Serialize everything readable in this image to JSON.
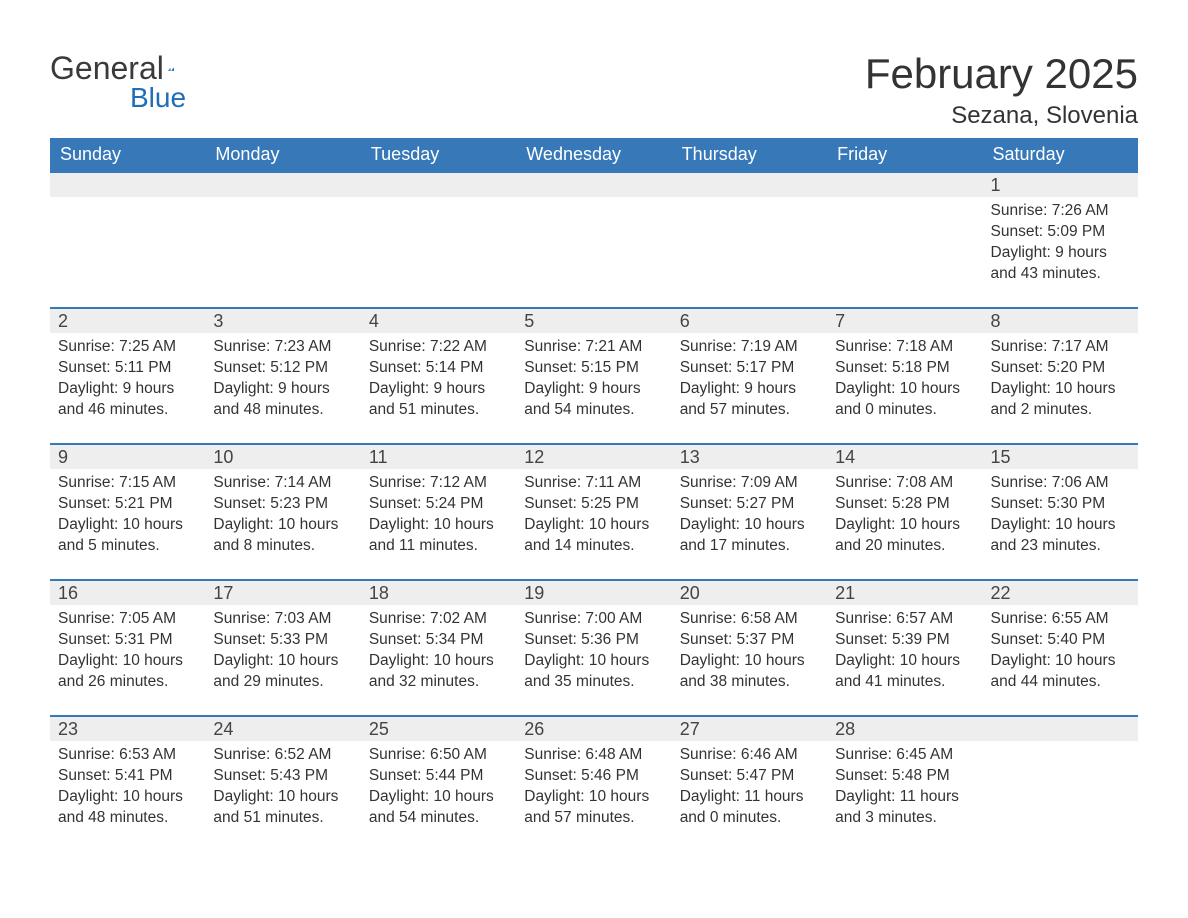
{
  "logo": {
    "text1": "General",
    "text2": "Blue"
  },
  "title": "February 2025",
  "location": "Sezana, Slovenia",
  "colors": {
    "header_bg": "#3678b8",
    "header_text": "#ffffff",
    "day_num_bg": "#eeeeee",
    "week_border": "#3678b8",
    "body_text": "#333333"
  },
  "typography": {
    "title_fontsize": 42,
    "location_fontsize": 24,
    "header_fontsize": 18,
    "daynum_fontsize": 18,
    "detail_fontsize": 15.5
  },
  "day_labels": [
    "Sunday",
    "Monday",
    "Tuesday",
    "Wednesday",
    "Thursday",
    "Friday",
    "Saturday"
  ],
  "weeks": [
    [
      null,
      null,
      null,
      null,
      null,
      null,
      {
        "n": "1",
        "sr": "Sunrise: 7:26 AM",
        "ss": "Sunset: 5:09 PM",
        "dl": "Daylight: 9 hours and 43 minutes."
      }
    ],
    [
      {
        "n": "2",
        "sr": "Sunrise: 7:25 AM",
        "ss": "Sunset: 5:11 PM",
        "dl": "Daylight: 9 hours and 46 minutes."
      },
      {
        "n": "3",
        "sr": "Sunrise: 7:23 AM",
        "ss": "Sunset: 5:12 PM",
        "dl": "Daylight: 9 hours and 48 minutes."
      },
      {
        "n": "4",
        "sr": "Sunrise: 7:22 AM",
        "ss": "Sunset: 5:14 PM",
        "dl": "Daylight: 9 hours and 51 minutes."
      },
      {
        "n": "5",
        "sr": "Sunrise: 7:21 AM",
        "ss": "Sunset: 5:15 PM",
        "dl": "Daylight: 9 hours and 54 minutes."
      },
      {
        "n": "6",
        "sr": "Sunrise: 7:19 AM",
        "ss": "Sunset: 5:17 PM",
        "dl": "Daylight: 9 hours and 57 minutes."
      },
      {
        "n": "7",
        "sr": "Sunrise: 7:18 AM",
        "ss": "Sunset: 5:18 PM",
        "dl": "Daylight: 10 hours and 0 minutes."
      },
      {
        "n": "8",
        "sr": "Sunrise: 7:17 AM",
        "ss": "Sunset: 5:20 PM",
        "dl": "Daylight: 10 hours and 2 minutes."
      }
    ],
    [
      {
        "n": "9",
        "sr": "Sunrise: 7:15 AM",
        "ss": "Sunset: 5:21 PM",
        "dl": "Daylight: 10 hours and 5 minutes."
      },
      {
        "n": "10",
        "sr": "Sunrise: 7:14 AM",
        "ss": "Sunset: 5:23 PM",
        "dl": "Daylight: 10 hours and 8 minutes."
      },
      {
        "n": "11",
        "sr": "Sunrise: 7:12 AM",
        "ss": "Sunset: 5:24 PM",
        "dl": "Daylight: 10 hours and 11 minutes."
      },
      {
        "n": "12",
        "sr": "Sunrise: 7:11 AM",
        "ss": "Sunset: 5:25 PM",
        "dl": "Daylight: 10 hours and 14 minutes."
      },
      {
        "n": "13",
        "sr": "Sunrise: 7:09 AM",
        "ss": "Sunset: 5:27 PM",
        "dl": "Daylight: 10 hours and 17 minutes."
      },
      {
        "n": "14",
        "sr": "Sunrise: 7:08 AM",
        "ss": "Sunset: 5:28 PM",
        "dl": "Daylight: 10 hours and 20 minutes."
      },
      {
        "n": "15",
        "sr": "Sunrise: 7:06 AM",
        "ss": "Sunset: 5:30 PM",
        "dl": "Daylight: 10 hours and 23 minutes."
      }
    ],
    [
      {
        "n": "16",
        "sr": "Sunrise: 7:05 AM",
        "ss": "Sunset: 5:31 PM",
        "dl": "Daylight: 10 hours and 26 minutes."
      },
      {
        "n": "17",
        "sr": "Sunrise: 7:03 AM",
        "ss": "Sunset: 5:33 PM",
        "dl": "Daylight: 10 hours and 29 minutes."
      },
      {
        "n": "18",
        "sr": "Sunrise: 7:02 AM",
        "ss": "Sunset: 5:34 PM",
        "dl": "Daylight: 10 hours and 32 minutes."
      },
      {
        "n": "19",
        "sr": "Sunrise: 7:00 AM",
        "ss": "Sunset: 5:36 PM",
        "dl": "Daylight: 10 hours and 35 minutes."
      },
      {
        "n": "20",
        "sr": "Sunrise: 6:58 AM",
        "ss": "Sunset: 5:37 PM",
        "dl": "Daylight: 10 hours and 38 minutes."
      },
      {
        "n": "21",
        "sr": "Sunrise: 6:57 AM",
        "ss": "Sunset: 5:39 PM",
        "dl": "Daylight: 10 hours and 41 minutes."
      },
      {
        "n": "22",
        "sr": "Sunrise: 6:55 AM",
        "ss": "Sunset: 5:40 PM",
        "dl": "Daylight: 10 hours and 44 minutes."
      }
    ],
    [
      {
        "n": "23",
        "sr": "Sunrise: 6:53 AM",
        "ss": "Sunset: 5:41 PM",
        "dl": "Daylight: 10 hours and 48 minutes."
      },
      {
        "n": "24",
        "sr": "Sunrise: 6:52 AM",
        "ss": "Sunset: 5:43 PM",
        "dl": "Daylight: 10 hours and 51 minutes."
      },
      {
        "n": "25",
        "sr": "Sunrise: 6:50 AM",
        "ss": "Sunset: 5:44 PM",
        "dl": "Daylight: 10 hours and 54 minutes."
      },
      {
        "n": "26",
        "sr": "Sunrise: 6:48 AM",
        "ss": "Sunset: 5:46 PM",
        "dl": "Daylight: 10 hours and 57 minutes."
      },
      {
        "n": "27",
        "sr": "Sunrise: 6:46 AM",
        "ss": "Sunset: 5:47 PM",
        "dl": "Daylight: 11 hours and 0 minutes."
      },
      {
        "n": "28",
        "sr": "Sunrise: 6:45 AM",
        "ss": "Sunset: 5:48 PM",
        "dl": "Daylight: 11 hours and 3 minutes."
      },
      null
    ]
  ]
}
